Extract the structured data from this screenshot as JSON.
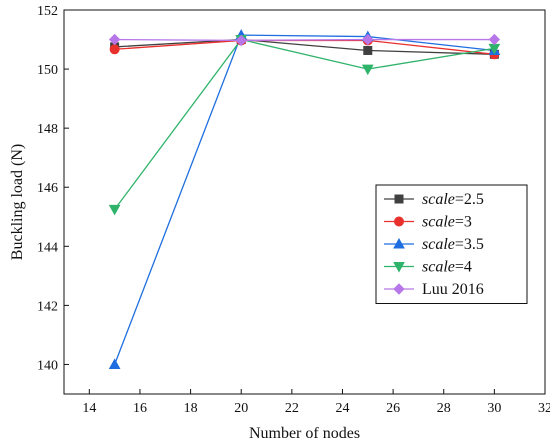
{
  "chart_data": {
    "type": "line",
    "title": "",
    "xlabel": "Number of nodes",
    "ylabel": "Buckling load (N)",
    "xlim": [
      13,
      32
    ],
    "ylim": [
      139,
      152
    ],
    "xticks": [
      14,
      16,
      18,
      20,
      22,
      24,
      26,
      28,
      30,
      32
    ],
    "yticks": [
      140,
      142,
      144,
      146,
      148,
      150,
      152
    ],
    "grid": false,
    "legend_position": "right",
    "series": [
      {
        "name_prefix": "scale",
        "name_suffix": "=2.5",
        "color": "#404040",
        "marker": "square",
        "x": [
          15,
          20,
          25,
          30
        ],
        "y": [
          150.75,
          151.0,
          150.63,
          150.5
        ]
      },
      {
        "name_prefix": "scale",
        "name_suffix": "=3",
        "color": "#e8302c",
        "marker": "circle",
        "x": [
          15,
          20,
          25,
          30
        ],
        "y": [
          150.67,
          150.97,
          150.97,
          150.5
        ]
      },
      {
        "name_prefix": "scale",
        "name_suffix": "=3.5",
        "color": "#1e6ee0",
        "marker": "triangle-up",
        "x": [
          15,
          20,
          25,
          30
        ],
        "y": [
          140.0,
          151.15,
          151.1,
          150.63
        ]
      },
      {
        "name_prefix": "scale",
        "name_suffix": "=4",
        "color": "#2fb36a",
        "marker": "triangle-down",
        "x": [
          15,
          20,
          25,
          30
        ],
        "y": [
          145.25,
          151.0,
          150.0,
          150.7
        ]
      },
      {
        "name_prefix": "",
        "name_suffix": "Luu 2016",
        "color": "#b877e8",
        "marker": "diamond",
        "x": [
          15,
          20,
          25,
          30
        ],
        "y": [
          151.0,
          150.97,
          151.0,
          151.0
        ]
      }
    ]
  }
}
